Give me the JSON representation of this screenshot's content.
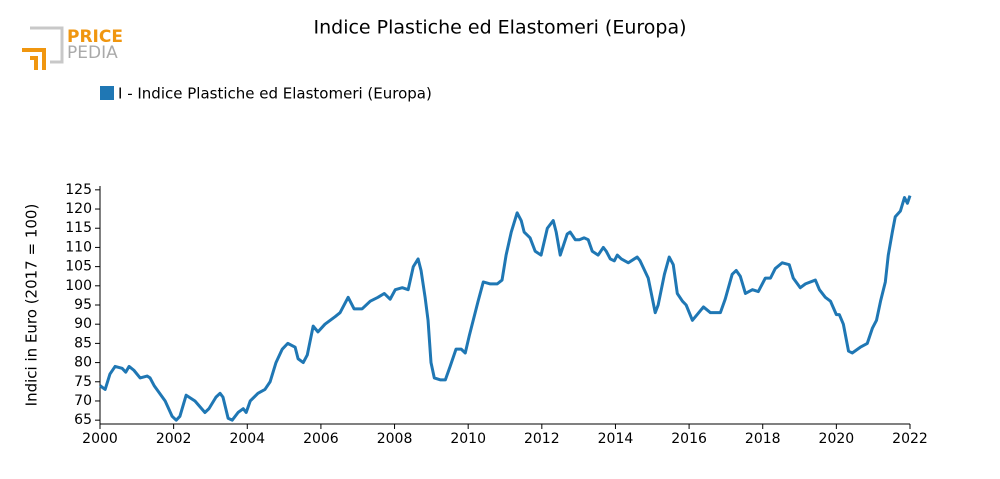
{
  "logo": {
    "line1": "PRICE",
    "line2": "PEDIA"
  },
  "chart_data": {
    "type": "line",
    "title": "Indice Plastiche ed Elastomeri (Europa)",
    "y_label": "Indici in Euro (2017 = 100)",
    "x": [
      2000.0,
      2000.14,
      2000.27,
      2000.41,
      2000.6,
      2000.7,
      2000.79,
      2000.92,
      2001.09,
      2001.28,
      2001.36,
      2001.47,
      2001.77,
      2001.96,
      2002.07,
      2002.17,
      2002.34,
      2002.58,
      2002.85,
      2002.96,
      2003.15,
      2003.26,
      2003.34,
      2003.48,
      2003.59,
      2003.75,
      2003.89,
      2003.97,
      2004.08,
      2004.29,
      2004.48,
      2004.62,
      2004.78,
      2004.95,
      2005.1,
      2005.3,
      2005.38,
      2005.52,
      2005.63,
      2005.79,
      2005.92,
      2006.11,
      2006.39,
      2006.52,
      2006.74,
      2006.9,
      2007.12,
      2007.34,
      2007.55,
      2007.72,
      2007.88,
      2008.02,
      2008.21,
      2008.37,
      2008.51,
      2008.64,
      2008.72,
      2008.83,
      2008.91,
      2008.99,
      2009.08,
      2009.24,
      2009.38,
      2009.51,
      2009.67,
      2009.81,
      2009.92,
      2010.03,
      2010.27,
      2010.41,
      2010.6,
      2010.79,
      2010.92,
      2011.03,
      2011.17,
      2011.33,
      2011.44,
      2011.52,
      2011.68,
      2011.82,
      2011.98,
      2012.15,
      2012.31,
      2012.39,
      2012.5,
      2012.69,
      2012.77,
      2012.91,
      2013.02,
      2013.15,
      2013.26,
      2013.37,
      2013.53,
      2013.67,
      2013.75,
      2013.86,
      2013.97,
      2014.05,
      2014.16,
      2014.35,
      2014.51,
      2014.59,
      2014.67,
      2014.89,
      2015.08,
      2015.16,
      2015.33,
      2015.46,
      2015.57,
      2015.68,
      2015.82,
      2015.92,
      2016.09,
      2016.22,
      2016.39,
      2016.58,
      2016.85,
      2016.98,
      2017.17,
      2017.28,
      2017.39,
      2017.53,
      2017.72,
      2017.88,
      2018.07,
      2018.21,
      2018.34,
      2018.53,
      2018.72,
      2018.83,
      2019.02,
      2019.16,
      2019.43,
      2019.54,
      2019.7,
      2019.84,
      2020.0,
      2020.08,
      2020.19,
      2020.33,
      2020.43,
      2020.65,
      2020.84,
      2020.98,
      2021.09,
      2021.2,
      2021.33,
      2021.41,
      2021.52,
      2021.6,
      2021.74,
      2021.85,
      2021.93,
      2022.0
    ],
    "series": [
      {
        "name": "I - Indice Plastiche ed Elastomeri (Europa)",
        "color": "#1f77b4",
        "values": [
          74,
          73,
          77,
          79,
          78.5,
          77.5,
          79,
          78,
          76,
          76.5,
          76,
          74,
          70,
          66,
          65,
          66,
          71.5,
          70,
          67,
          68,
          71,
          72,
          71,
          65.5,
          65,
          67,
          68,
          67,
          70,
          72,
          73,
          75,
          80,
          83.5,
          85,
          84,
          81,
          80,
          82,
          89.5,
          88,
          90,
          92,
          93,
          97,
          94,
          94,
          96,
          97,
          98,
          96.5,
          99,
          99.5,
          99,
          105,
          107,
          104,
          97,
          91,
          80,
          76,
          75.5,
          75.5,
          79,
          83.5,
          83.5,
          82.5,
          87,
          96,
          101,
          100.5,
          100.5,
          101.5,
          108,
          114,
          119,
          117,
          114,
          112.5,
          109,
          108,
          115,
          117,
          114,
          108,
          113.5,
          114,
          112,
          112,
          112.5,
          112,
          109,
          108,
          110,
          109,
          107,
          106.5,
          108,
          107,
          106,
          107,
          107.5,
          106.5,
          102,
          93,
          95,
          103,
          107.5,
          105.5,
          98,
          96,
          95,
          91,
          92.5,
          94.5,
          93,
          93,
          96.5,
          103,
          104,
          102.5,
          98,
          99,
          98.5,
          102,
          102,
          104.5,
          106,
          105.5,
          102,
          99.5,
          100.5,
          101.5,
          99,
          97,
          96,
          92.5,
          92.5,
          90,
          83,
          82.5,
          84,
          85,
          89,
          91,
          96,
          101,
          108,
          114,
          118,
          119.5,
          123,
          121.5,
          123.5
        ]
      }
    ],
    "xlim": [
      2000,
      2022
    ],
    "xticks": [
      2000,
      2002,
      2004,
      2006,
      2008,
      2010,
      2012,
      2014,
      2016,
      2018,
      2020,
      2022
    ],
    "ylim": [
      64,
      126
    ],
    "yticks": [
      65,
      70,
      75,
      80,
      85,
      90,
      95,
      100,
      105,
      110,
      115,
      120,
      125
    ],
    "grid": false,
    "legend": "top-left"
  }
}
